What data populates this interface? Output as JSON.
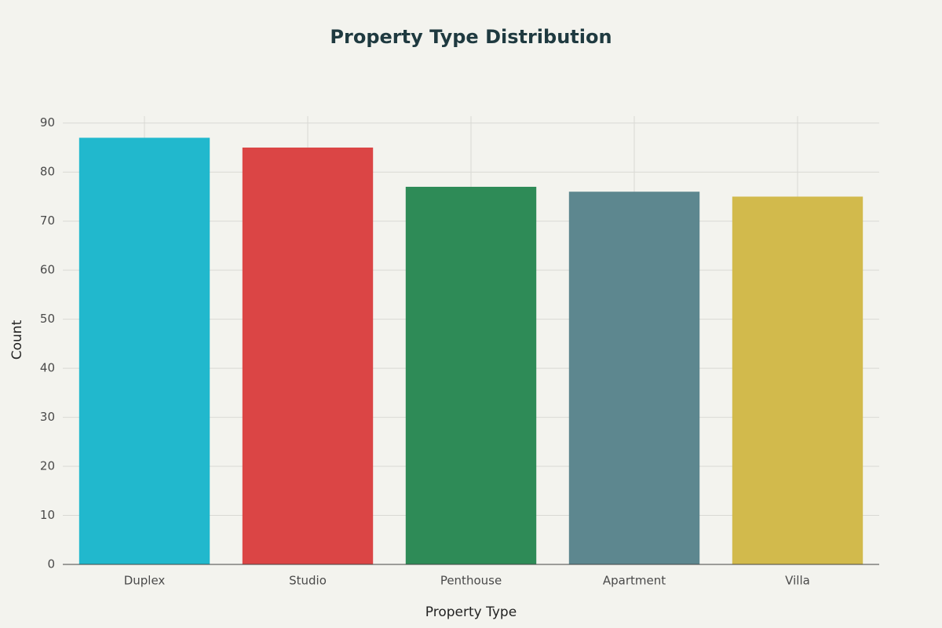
{
  "chart_data": {
    "type": "bar",
    "title": "Property Type Distribution",
    "x_label": "Property Type",
    "y_label": "Count",
    "categories": [
      "Duplex",
      "Studio",
      "Penthouse",
      "Apartment",
      "Villa"
    ],
    "values": [
      87,
      85,
      77,
      76,
      75
    ],
    "colors": [
      "#21b8cd",
      "#db4545",
      "#2e8b57",
      "#5d878f",
      "#d2ba4c"
    ],
    "ylim": [
      0,
      91.4
    ],
    "yticks": [
      0,
      10,
      20,
      30,
      40,
      50,
      60,
      70,
      80,
      90
    ],
    "grid": true
  }
}
